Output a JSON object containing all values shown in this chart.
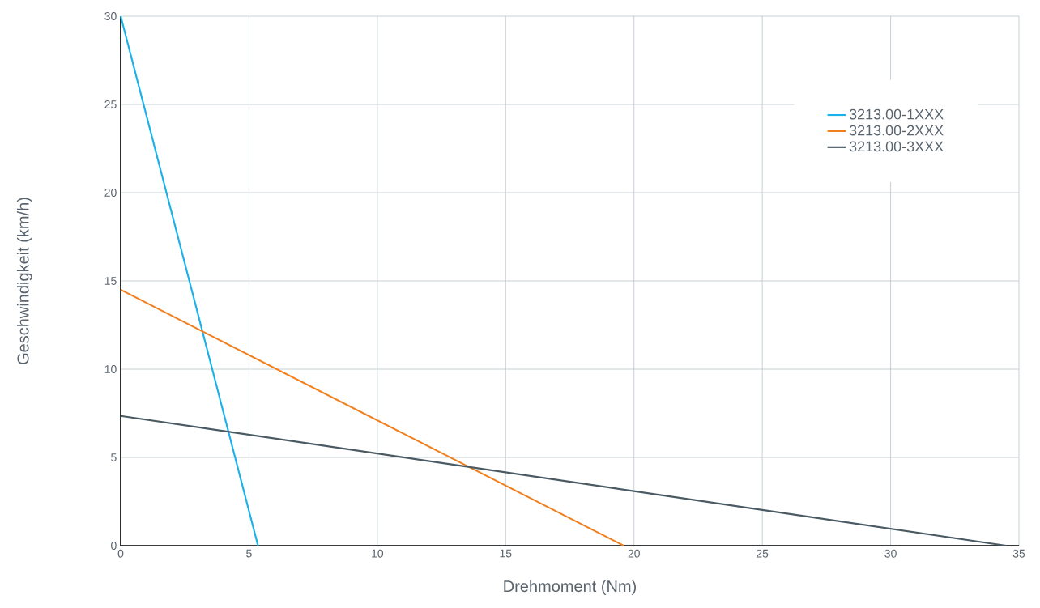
{
  "chart_data": {
    "type": "line",
    "xlabel": "Drehmoment (Nm)",
    "ylabel": "Geschwindigkeit (km/h)",
    "series": [
      {
        "name": "3213.00-1XXX",
        "color": "#1ab0e8",
        "x": [
          0,
          5.35
        ],
        "values": [
          30,
          0
        ]
      },
      {
        "name": "3213.00-2XXX",
        "color": "#f07f1e",
        "x": [
          0,
          19.6
        ],
        "values": [
          14.5,
          0
        ]
      },
      {
        "name": "3213.00-3XXX",
        "color": "#4a5a63",
        "x": [
          0,
          34.5
        ],
        "values": [
          7.35,
          0
        ]
      }
    ],
    "xlim": [
      0,
      35
    ],
    "ylim": [
      0,
      30
    ],
    "xticks": [
      0,
      5,
      10,
      15,
      20,
      25,
      30,
      35
    ],
    "yticks": [
      0,
      5,
      10,
      15,
      20,
      25,
      30
    ],
    "grid": true,
    "legend": "top right",
    "marker": "none",
    "line_style": "solid"
  }
}
